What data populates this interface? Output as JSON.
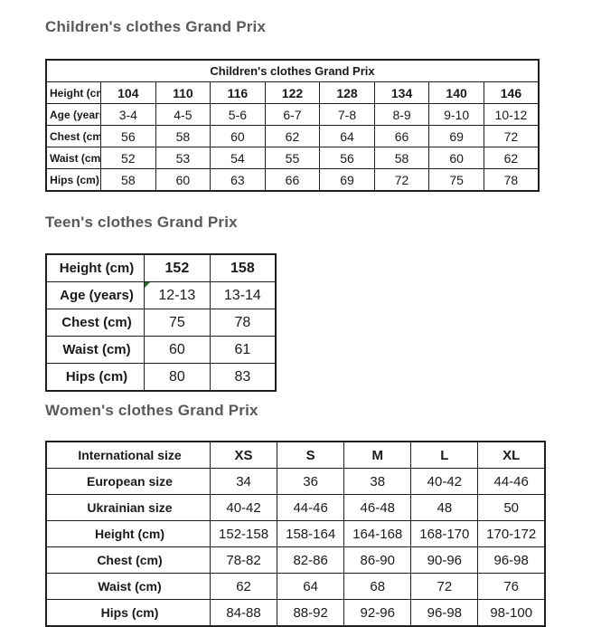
{
  "headings": {
    "children": "Children's clothes Grand Prix",
    "teens": "Teen's clothes Grand Prix",
    "women": "Women's clothes Grand Prix"
  },
  "colors": {
    "heading_gray": "#595959",
    "table_border": "#1f1f1f",
    "text": "#1a1a1a",
    "cell_corner_marker_green": "#217321"
  },
  "children_table": {
    "title": "Children's clothes Grand Prix",
    "rows": [
      {
        "label": "Height (cm)",
        "bold_values": true,
        "values": [
          "104",
          "110",
          "116",
          "122",
          "128",
          "134",
          "140",
          "146"
        ]
      },
      {
        "label": "Age (years)",
        "values": [
          "3-4",
          "4-5",
          "5-6",
          "6-7",
          "7-8",
          "8-9",
          "9-10",
          "10-12"
        ]
      },
      {
        "label": "Chest (cm)",
        "values": [
          "56",
          "58",
          "60",
          "62",
          "64",
          "66",
          "69",
          "72"
        ]
      },
      {
        "label": "Waist (cm)",
        "values": [
          "52",
          "53",
          "54",
          "55",
          "56",
          "58",
          "60",
          "62"
        ]
      },
      {
        "label": "Hips (cm)",
        "values": [
          "58",
          "60",
          "63",
          "66",
          "69",
          "72",
          "75",
          "78"
        ]
      }
    ]
  },
  "teen_table": {
    "rows": [
      {
        "label": "Height (cm)",
        "bold_values": true,
        "values": [
          "152",
          "158"
        ]
      },
      {
        "label": "Age (years)",
        "marker": true,
        "values": [
          "12-13",
          "13-14"
        ]
      },
      {
        "label": "Chest (cm)",
        "values": [
          "75",
          "78"
        ]
      },
      {
        "label": "Waist (cm)",
        "values": [
          "60",
          "61"
        ]
      },
      {
        "label": "Hips (cm)",
        "values": [
          "80",
          "83"
        ]
      }
    ]
  },
  "women_table": {
    "rows": [
      {
        "label": "International size",
        "bold_values": true,
        "values": [
          "XS",
          "S",
          "M",
          "L",
          "XL"
        ]
      },
      {
        "label": "European size",
        "values": [
          "34",
          "36",
          "38",
          "40-42",
          "44-46"
        ]
      },
      {
        "label": "Ukrainian size",
        "values": [
          "40-42",
          "44-46",
          "46-48",
          "48",
          "50"
        ]
      },
      {
        "label": "Height (cm)",
        "values": [
          "152-158",
          "158-164",
          "164-168",
          "168-170",
          "170-172"
        ]
      },
      {
        "label": "Chest (cm)",
        "values": [
          "78-82",
          "82-86",
          "86-90",
          "90-96",
          "96-98"
        ]
      },
      {
        "label": "Waist (cm)",
        "values": [
          "62",
          "64",
          "68",
          "72",
          "76"
        ]
      },
      {
        "label": "Hips (cm)",
        "values": [
          "84-88",
          "88-92",
          "92-96",
          "96-98",
          "98-100"
        ]
      }
    ]
  }
}
